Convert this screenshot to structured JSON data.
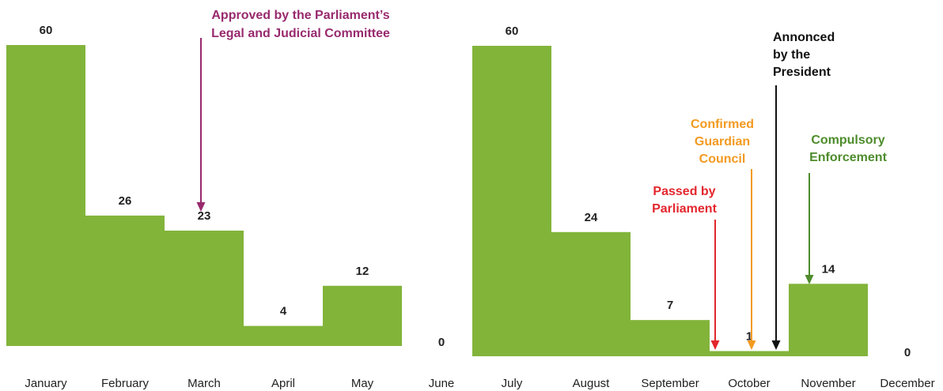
{
  "colors": {
    "bar": "#82b43a",
    "approved": "#982a6e",
    "passed": "#e3262d",
    "confirmed": "#f39a20",
    "announced": "#111111",
    "enforcement": "#4e8c2c",
    "text": "#222222"
  },
  "chart_data": [
    {
      "type": "bar",
      "categories": [
        "January",
        "February",
        "March",
        "April",
        "May",
        "June"
      ],
      "values": [
        60,
        26,
        23,
        4,
        12,
        0
      ],
      "ylim": [
        0,
        60
      ],
      "grid": false,
      "annotations": [
        {
          "key": "approved",
          "lines": [
            "Approved by the Parliament’s",
            "Legal and Judicial Committee"
          ],
          "color_key": "approved",
          "points_to": "March"
        }
      ]
    },
    {
      "type": "bar",
      "categories": [
        "July",
        "August",
        "September",
        "October",
        "November",
        "December"
      ],
      "values": [
        60,
        24,
        7,
        1,
        14,
        0
      ],
      "ylim": [
        0,
        60
      ],
      "grid": false,
      "annotations": [
        {
          "key": "passed",
          "lines": [
            "Passed by",
            "Parliament"
          ],
          "color_key": "passed",
          "points_to": "October"
        },
        {
          "key": "confirmed",
          "lines": [
            "Confirmed",
            "Guardian",
            "Council"
          ],
          "color_key": "confirmed",
          "points_to": "October"
        },
        {
          "key": "announced",
          "lines": [
            "Annonced",
            "by the",
            "President"
          ],
          "color_key": "announced",
          "points_to": "October"
        },
        {
          "key": "enforcement",
          "lines": [
            "Compulsory",
            "Enforcement"
          ],
          "color_key": "enforcement",
          "points_to": "November"
        }
      ]
    }
  ]
}
